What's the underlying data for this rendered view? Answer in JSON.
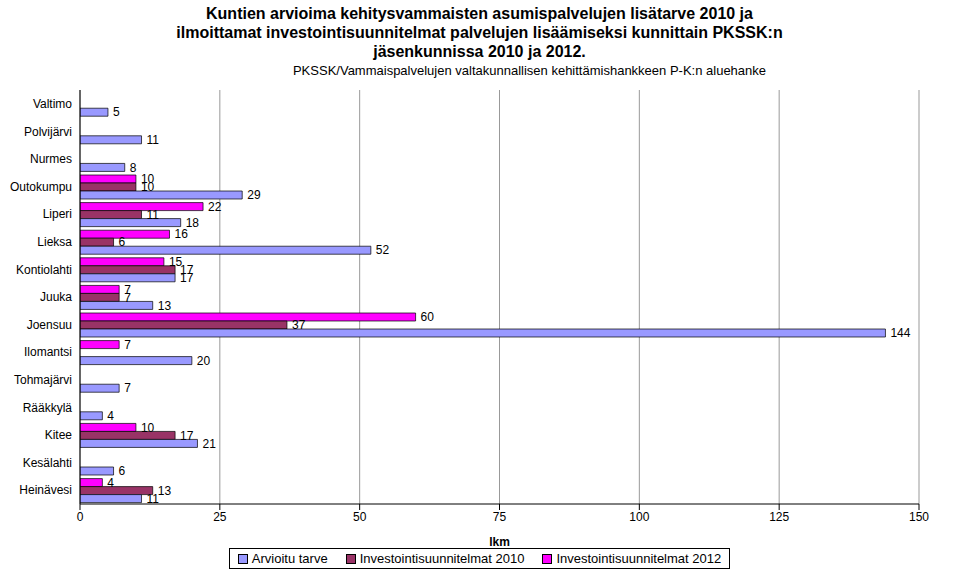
{
  "chart_data": {
    "type": "bar",
    "orientation": "horizontal",
    "title": "Kuntien arvioima kehitysvammaisten asumispalvelujen lisätarve 2010 ja ilmoittamat investointisuunnitelmat palvelujen lisäämiseksi kunnittain PKSSK:n jäsenkunnissa 2010 ja 2012.",
    "subtitle": "PKSSK/Vammaispalvelujen valtakunnallisen kehittämishankkeen P-K:n aluehanke",
    "xlabel": "lkm",
    "categories": [
      "Valtimo",
      "Polvijärvi",
      "Nurmes",
      "Outokumpu",
      "Liperi",
      "Lieksa",
      "Kontiolahti",
      "Juuka",
      "Joensuu",
      "Ilomantsi",
      "Tohmajärvi",
      "Rääkkylä",
      "Kitee",
      "Kesälahti",
      "Heinävesi"
    ],
    "series": [
      {
        "name": "Arvioitu tarve",
        "color": "#9999ff",
        "values": [
          5,
          11,
          8,
          29,
          18,
          52,
          17,
          13,
          144,
          20,
          7,
          4,
          21,
          6,
          11
        ]
      },
      {
        "name": "Investointisuunnitelmat 2010",
        "color": "#993366",
        "values": [
          null,
          null,
          null,
          10,
          11,
          6,
          17,
          7,
          37,
          null,
          null,
          null,
          17,
          null,
          13
        ]
      },
      {
        "name": "Investointisuunnitelmat 2012",
        "color": "#ff00ff",
        "values": [
          null,
          null,
          null,
          10,
          22,
          16,
          15,
          7,
          60,
          7,
          null,
          null,
          10,
          null,
          4
        ]
      }
    ],
    "xlim": [
      0,
      150
    ],
    "xticks": [
      0,
      25,
      50,
      75,
      100,
      125,
      150
    ],
    "grid": true,
    "data_labels": true,
    "legend": "bottom"
  }
}
